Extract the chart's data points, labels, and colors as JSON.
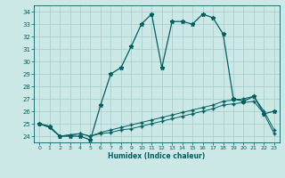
{
  "xlabel": "Humidex (Indice chaleur)",
  "bg_color": "#cce8e6",
  "grid_color": "#aad0ce",
  "line_color": "#006060",
  "x": [
    0,
    1,
    2,
    3,
    4,
    5,
    6,
    7,
    8,
    9,
    10,
    11,
    12,
    13,
    14,
    15,
    16,
    17,
    18,
    19,
    20,
    21,
    22,
    23
  ],
  "y_main": [
    25.0,
    24.8,
    24.0,
    24.0,
    24.0,
    23.7,
    26.5,
    29.0,
    29.5,
    31.2,
    33.0,
    33.8,
    29.5,
    33.2,
    33.2,
    33.0,
    33.8,
    33.5,
    32.2,
    27.0,
    26.8,
    27.2,
    25.8,
    26.0
  ],
  "y_lower": [
    25.0,
    24.7,
    24.0,
    24.1,
    24.2,
    24.0,
    24.2,
    24.3,
    24.5,
    24.6,
    24.8,
    25.0,
    25.2,
    25.4,
    25.6,
    25.8,
    26.0,
    26.2,
    26.5,
    26.6,
    26.7,
    26.8,
    25.8,
    24.2
  ],
  "y_upper": [
    25.0,
    24.7,
    24.0,
    24.1,
    24.2,
    24.0,
    24.3,
    24.5,
    24.7,
    24.9,
    25.1,
    25.3,
    25.5,
    25.7,
    25.9,
    26.1,
    26.3,
    26.5,
    26.8,
    26.9,
    27.0,
    27.2,
    26.0,
    24.5
  ],
  "ylim": [
    23.5,
    34.5
  ],
  "xlim": [
    -0.5,
    23.5
  ],
  "yticks": [
    24,
    25,
    26,
    27,
    28,
    29,
    30,
    31,
    32,
    33,
    34
  ],
  "xticks": [
    0,
    1,
    2,
    3,
    4,
    5,
    6,
    7,
    8,
    9,
    10,
    11,
    12,
    13,
    14,
    15,
    16,
    17,
    18,
    19,
    20,
    21,
    22,
    23
  ]
}
